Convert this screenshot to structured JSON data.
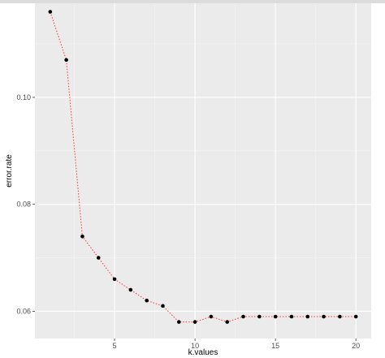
{
  "chart_data": {
    "type": "line",
    "xlabel": "k.values",
    "ylabel": "error.rate",
    "xlim": [
      0.05,
      20.95
    ],
    "ylim": [
      0.0549,
      0.1176
    ],
    "x_breaks": [
      5,
      10,
      15,
      20
    ],
    "x_minor_breaks": [
      2.5,
      7.5,
      12.5,
      17.5
    ],
    "y_breaks": [
      0.06,
      0.08,
      0.1
    ],
    "y_minor_breaks": [
      0.07,
      0.09,
      0.11
    ],
    "x_tick_labels": [
      "5",
      "10",
      "15",
      "20"
    ],
    "y_tick_labels": [
      "0.06",
      "0.08",
      "0.10"
    ],
    "grid": true,
    "legend": "none",
    "series": [
      {
        "x": [
          1,
          2,
          3,
          4,
          5,
          6,
          7,
          8,
          9,
          10,
          11,
          12,
          13,
          14,
          15,
          16,
          17,
          18,
          19,
          20
        ],
        "y": [
          0.116,
          0.107,
          0.074,
          0.07,
          0.066,
          0.064,
          0.062,
          0.061,
          0.058,
          0.058,
          0.059,
          0.058,
          0.059,
          0.059,
          0.059,
          0.059,
          0.059,
          0.059,
          0.059,
          0.059
        ]
      }
    ],
    "colors": {
      "panel_background": "#ebebeb",
      "grid_major": "#ffffff",
      "grid_minor": "#f5f5f5",
      "line": "#ff3333",
      "point": "#000000"
    }
  }
}
